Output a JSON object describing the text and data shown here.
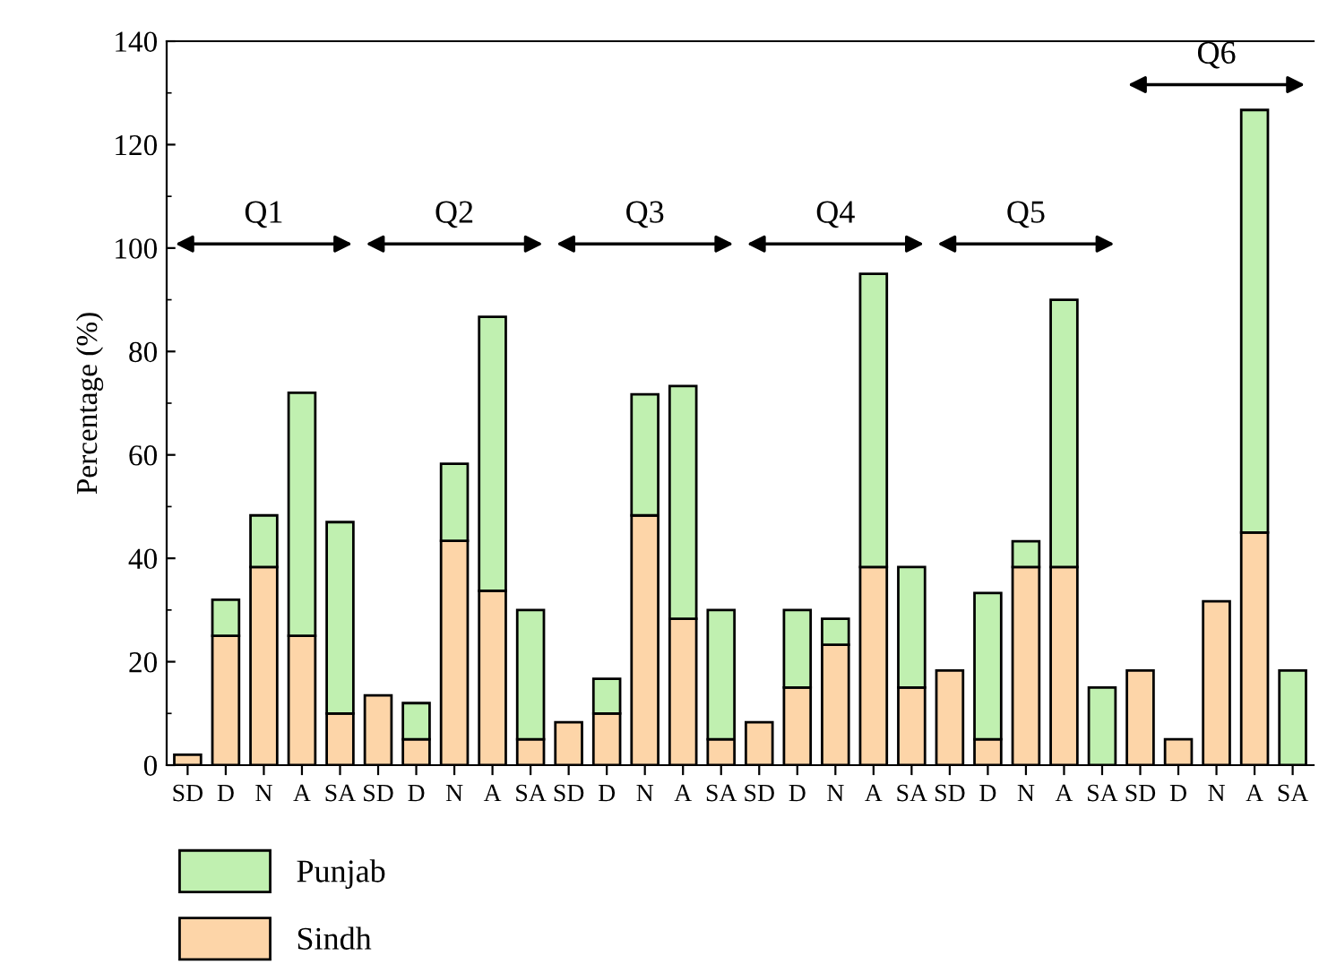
{
  "chart_data": {
    "type": "bar",
    "stacked": true,
    "ylabel": "Percentage (%)",
    "categories": [
      "SD",
      "D",
      "N",
      "A",
      "SA",
      "SD",
      "D",
      "N",
      "A",
      "SA",
      "SD",
      "D",
      "N",
      "A",
      "SA",
      "SD",
      "D",
      "N",
      "A",
      "SA",
      "SD",
      "D",
      "N",
      "A",
      "SA",
      "SD",
      "D",
      "N",
      "A",
      "SA"
    ],
    "series": [
      {
        "name": "Sindh",
        "color": "#fdd5a8",
        "values": [
          2,
          25,
          38.3,
          25,
          10,
          13.5,
          5,
          43.4,
          33.7,
          5,
          8.3,
          10,
          48.3,
          28.3,
          5,
          8.3,
          15,
          23.3,
          38.3,
          15,
          18.3,
          5,
          38.3,
          38.3,
          null,
          18.3,
          5,
          31.7,
          45,
          null
        ]
      },
      {
        "name": "Punjab",
        "color": "#c0f0b0",
        "values": [
          null,
          7,
          10,
          47,
          37,
          null,
          7,
          14.9,
          53,
          25,
          null,
          6.7,
          23.4,
          45,
          25,
          null,
          15,
          5,
          56.7,
          23.3,
          null,
          28.3,
          5,
          51.7,
          15,
          null,
          null,
          null,
          81.7,
          18.3
        ]
      }
    ],
    "ylim": [
      0,
      140
    ],
    "yticks": [
      0,
      20,
      40,
      60,
      80,
      100,
      120,
      140
    ],
    "grid": false,
    "legend": "bottom left",
    "annotations": [
      "Q1",
      "Q2",
      "Q3",
      "Q4",
      "Q5",
      "Q6"
    ]
  }
}
